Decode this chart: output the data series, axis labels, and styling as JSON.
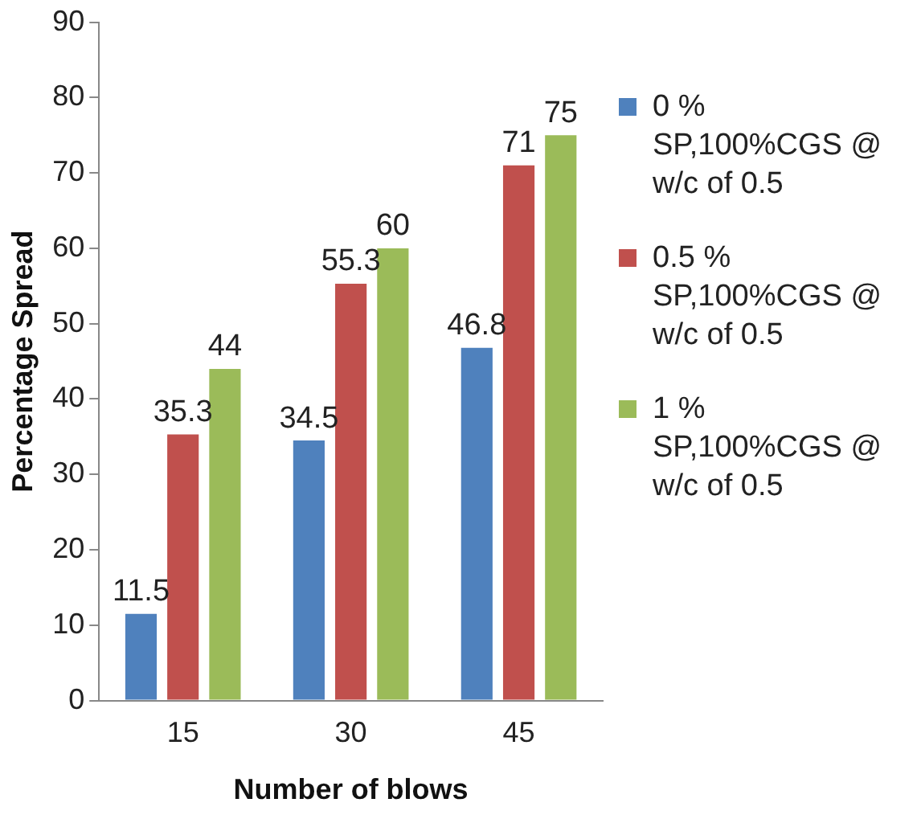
{
  "chart_data": {
    "type": "bar",
    "xlabel": "Number of blows",
    "ylabel": "Percentage Spread",
    "categories": [
      "15",
      "30",
      "45"
    ],
    "series": [
      {
        "name": "0 % SP,100%CGS @ w/c of 0.5",
        "color": "#4f81bd",
        "values": [
          11.5,
          34.5,
          46.8
        ]
      },
      {
        "name": "0.5 % SP,100%CGS @ w/c of 0.5",
        "color": "#c0504d",
        "values": [
          35.3,
          55.3,
          71
        ]
      },
      {
        "name": "1 % SP,100%CGS @ w/c of 0.5",
        "color": "#9bbb59",
        "values": [
          44,
          60,
          75
        ]
      }
    ],
    "ylim": [
      0,
      90
    ],
    "yticks": [
      0,
      10,
      20,
      30,
      40,
      50,
      60,
      70,
      80,
      90
    ],
    "grid": false,
    "legend": "right",
    "data_labels": true
  }
}
